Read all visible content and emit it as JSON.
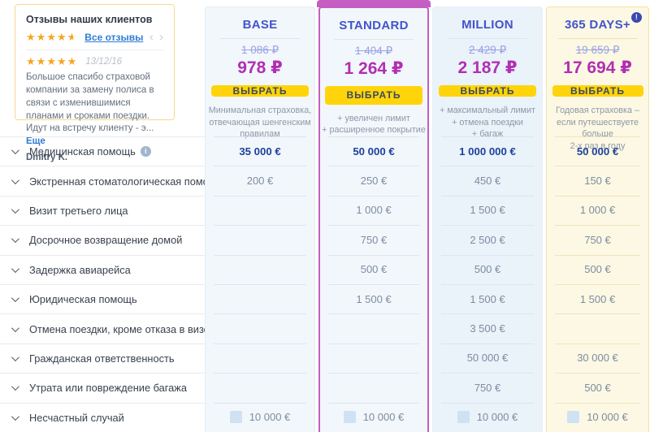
{
  "review": {
    "title": "Отзывы наших клиентов",
    "overall_rating": 4.5,
    "all_reviews_label": "Все отзывы",
    "item_rating": 5,
    "date": "13/12/16",
    "text": "Большое спасибо страховой компании за замену полиса в связи с изменившимися планами и сроками поездки. Идут на встречу клиенту - э...",
    "more_label": "Еще",
    "author": "Dmitry K."
  },
  "features": [
    {
      "label": "Медицинская помощь",
      "has_info": true
    },
    {
      "label": "Экстренная стоматологическая помощь",
      "has_info": false
    },
    {
      "label": "Визит третьего лица",
      "has_info": false
    },
    {
      "label": "Досрочное возвращение домой",
      "has_info": false
    },
    {
      "label": "Задержка авиарейса",
      "has_info": false
    },
    {
      "label": "Юридическая помощь",
      "has_info": false
    },
    {
      "label": "Отмена поездки, кроме отказа в визе",
      "has_info": false
    },
    {
      "label": "Гражданская ответственность",
      "has_info": false
    },
    {
      "label": "Утрата или повреждение багажа",
      "has_info": false
    },
    {
      "label": "Несчастный случай",
      "has_info": false
    }
  ],
  "plans": [
    {
      "name": "BASE",
      "old_price": "1 086 ₽",
      "price": "978 ₽",
      "button_label": "ВЫБРАТЬ",
      "description": "Минимальная страховка,\nотвечающая шенгенским\nправилам",
      "highlighted": false,
      "info_badge": false,
      "last_row_checkbox": true,
      "values": [
        "35 000 €",
        "200 €",
        "",
        "",
        "",
        "",
        "",
        "",
        "",
        "10 000 €"
      ]
    },
    {
      "name": "STANDARD",
      "old_price": "1 404 ₽",
      "price": "1 264 ₽",
      "button_label": "ВЫБРАТЬ",
      "description": "+ увеличен лимит\n+ расширенное покрытие",
      "highlighted": true,
      "info_badge": false,
      "last_row_checkbox": true,
      "values": [
        "50 000 €",
        "250 €",
        "1 000 €",
        "750 €",
        "500 €",
        "1 500 €",
        "",
        "",
        "",
        "10 000 €"
      ]
    },
    {
      "name": "MILLION",
      "old_price": "2 429 ₽",
      "price": "2 187 ₽",
      "button_label": "ВЫБРАТЬ",
      "description": "+ максимальный лимит\n+ отмена поездки\n+ багаж",
      "highlighted": false,
      "info_badge": false,
      "last_row_checkbox": true,
      "values": [
        "1 000 000 €",
        "450 €",
        "1 500 €",
        "2 500 €",
        "500 €",
        "1 500 €",
        "3 500 €",
        "50 000 €",
        "750 €",
        "10 000 €"
      ]
    },
    {
      "name": "365 DAYS+",
      "old_price": "19 659 ₽",
      "price": "17 694 ₽",
      "button_label": "ВЫБРАТЬ",
      "description": "Годовая страховка –\nесли путешествуете больше\n2-х раз в году",
      "highlighted": false,
      "info_badge": true,
      "last_row_checkbox": true,
      "values": [
        "50 000 €",
        "150 €",
        "1 000 €",
        "750 €",
        "500 €",
        "1 500 €",
        "",
        "30 000 €",
        "500 €",
        "10 000 €"
      ]
    }
  ],
  "icons": {
    "star": "★",
    "star_empty": "★",
    "arrow_prev": "‹",
    "arrow_next": "›",
    "info": "i",
    "badge_info": "!"
  },
  "colors": {
    "accent_yellow": "#ffd40a",
    "price_magenta": "#b12fb2",
    "old_price_lilac": "#9aa1e2",
    "plan_title_indigo": "#4254cb",
    "bold_value_navy": "#1d419b",
    "standard_border": "#c55ec2",
    "star_orange": "#f6a622",
    "link_blue": "#2d7dd2",
    "review_border": "#f3da8e",
    "card_blue_bg": "#f2f7fb",
    "card_yellow_bg": "#fcf8e3"
  }
}
